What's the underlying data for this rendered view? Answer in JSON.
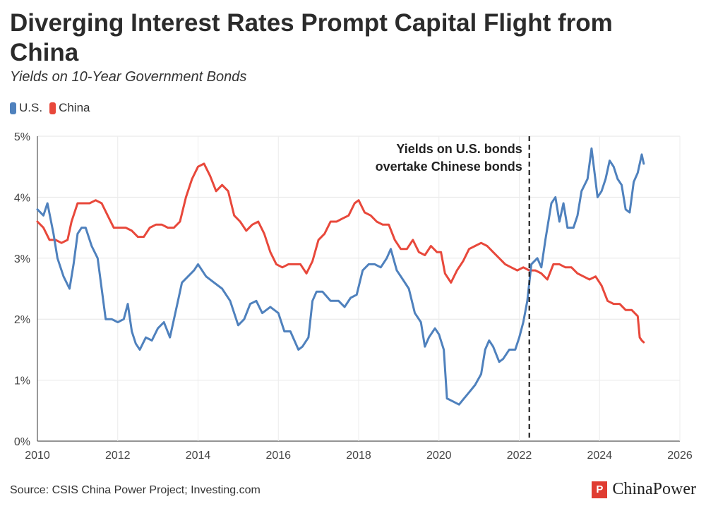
{
  "chart_data": {
    "type": "line",
    "title": "Diverging Interest Rates Prompt Capital Flight from China",
    "subtitle": "Yields on 10-Year Government Bonds",
    "xlabel": "",
    "ylabel": "",
    "xlim": [
      2010,
      2026
    ],
    "ylim": [
      0,
      5
    ],
    "xticks": [
      "2010",
      "2012",
      "2014",
      "2016",
      "2018",
      "2020",
      "2022",
      "2024",
      "2026"
    ],
    "yticks": [
      "0%",
      "1%",
      "2%",
      "3%",
      "4%",
      "5%"
    ],
    "grid": true,
    "legend_position": "top-left",
    "series": [
      {
        "name": "U.S.",
        "color": "#4f81bd",
        "points": [
          [
            2010.0,
            3.8
          ],
          [
            2010.15,
            3.7
          ],
          [
            2010.25,
            3.9
          ],
          [
            2010.4,
            3.4
          ],
          [
            2010.5,
            3.0
          ],
          [
            2010.65,
            2.7
          ],
          [
            2010.8,
            2.5
          ],
          [
            2010.9,
            2.9
          ],
          [
            2011.0,
            3.4
          ],
          [
            2011.1,
            3.5
          ],
          [
            2011.2,
            3.5
          ],
          [
            2011.35,
            3.2
          ],
          [
            2011.5,
            3.0
          ],
          [
            2011.6,
            2.5
          ],
          [
            2011.7,
            2.0
          ],
          [
            2011.85,
            2.0
          ],
          [
            2012.0,
            1.95
          ],
          [
            2012.15,
            2.0
          ],
          [
            2012.25,
            2.25
          ],
          [
            2012.35,
            1.8
          ],
          [
            2012.45,
            1.6
          ],
          [
            2012.55,
            1.5
          ],
          [
            2012.7,
            1.7
          ],
          [
            2012.85,
            1.65
          ],
          [
            2013.0,
            1.85
          ],
          [
            2013.15,
            1.95
          ],
          [
            2013.3,
            1.7
          ],
          [
            2013.4,
            2.0
          ],
          [
            2013.5,
            2.3
          ],
          [
            2013.6,
            2.6
          ],
          [
            2013.75,
            2.7
          ],
          [
            2013.9,
            2.8
          ],
          [
            2014.0,
            2.9
          ],
          [
            2014.2,
            2.7
          ],
          [
            2014.4,
            2.6
          ],
          [
            2014.6,
            2.5
          ],
          [
            2014.8,
            2.3
          ],
          [
            2015.0,
            1.9
          ],
          [
            2015.15,
            2.0
          ],
          [
            2015.3,
            2.25
          ],
          [
            2015.45,
            2.3
          ],
          [
            2015.6,
            2.1
          ],
          [
            2015.8,
            2.2
          ],
          [
            2016.0,
            2.1
          ],
          [
            2016.15,
            1.8
          ],
          [
            2016.3,
            1.8
          ],
          [
            2016.5,
            1.5
          ],
          [
            2016.6,
            1.55
          ],
          [
            2016.75,
            1.7
          ],
          [
            2016.85,
            2.3
          ],
          [
            2016.95,
            2.45
          ],
          [
            2017.1,
            2.45
          ],
          [
            2017.3,
            2.3
          ],
          [
            2017.5,
            2.3
          ],
          [
            2017.65,
            2.2
          ],
          [
            2017.8,
            2.35
          ],
          [
            2017.95,
            2.4
          ],
          [
            2018.1,
            2.8
          ],
          [
            2018.25,
            2.9
          ],
          [
            2018.4,
            2.9
          ],
          [
            2018.55,
            2.85
          ],
          [
            2018.7,
            3.0
          ],
          [
            2018.8,
            3.15
          ],
          [
            2018.95,
            2.8
          ],
          [
            2019.1,
            2.65
          ],
          [
            2019.25,
            2.5
          ],
          [
            2019.4,
            2.1
          ],
          [
            2019.55,
            1.95
          ],
          [
            2019.65,
            1.55
          ],
          [
            2019.75,
            1.7
          ],
          [
            2019.9,
            1.85
          ],
          [
            2020.0,
            1.75
          ],
          [
            2020.12,
            1.5
          ],
          [
            2020.2,
            0.7
          ],
          [
            2020.35,
            0.65
          ],
          [
            2020.5,
            0.6
          ],
          [
            2020.6,
            0.68
          ],
          [
            2020.75,
            0.8
          ],
          [
            2020.9,
            0.92
          ],
          [
            2021.05,
            1.1
          ],
          [
            2021.15,
            1.5
          ],
          [
            2021.25,
            1.65
          ],
          [
            2021.35,
            1.55
          ],
          [
            2021.5,
            1.3
          ],
          [
            2021.6,
            1.35
          ],
          [
            2021.75,
            1.5
          ],
          [
            2021.9,
            1.5
          ],
          [
            2022.0,
            1.7
          ],
          [
            2022.1,
            1.95
          ],
          [
            2022.2,
            2.3
          ],
          [
            2022.3,
            2.9
          ],
          [
            2022.45,
            3.0
          ],
          [
            2022.55,
            2.85
          ],
          [
            2022.65,
            3.3
          ],
          [
            2022.8,
            3.9
          ],
          [
            2022.9,
            4.0
          ],
          [
            2023.0,
            3.6
          ],
          [
            2023.1,
            3.9
          ],
          [
            2023.2,
            3.5
          ],
          [
            2023.35,
            3.5
          ],
          [
            2023.45,
            3.7
          ],
          [
            2023.55,
            4.1
          ],
          [
            2023.7,
            4.3
          ],
          [
            2023.8,
            4.8
          ],
          [
            2023.95,
            4.0
          ],
          [
            2024.05,
            4.1
          ],
          [
            2024.15,
            4.3
          ],
          [
            2024.25,
            4.6
          ],
          [
            2024.35,
            4.5
          ],
          [
            2024.45,
            4.3
          ],
          [
            2024.55,
            4.2
          ],
          [
            2024.65,
            3.8
          ],
          [
            2024.75,
            3.75
          ],
          [
            2024.85,
            4.25
          ],
          [
            2024.95,
            4.4
          ],
          [
            2025.05,
            4.7
          ],
          [
            2025.1,
            4.55
          ]
        ]
      },
      {
        "name": "China",
        "color": "#e8483b",
        "points": [
          [
            2010.0,
            3.6
          ],
          [
            2010.15,
            3.5
          ],
          [
            2010.3,
            3.3
          ],
          [
            2010.45,
            3.3
          ],
          [
            2010.6,
            3.25
          ],
          [
            2010.75,
            3.3
          ],
          [
            2010.85,
            3.6
          ],
          [
            2011.0,
            3.9
          ],
          [
            2011.15,
            3.9
          ],
          [
            2011.3,
            3.9
          ],
          [
            2011.45,
            3.95
          ],
          [
            2011.6,
            3.9
          ],
          [
            2011.75,
            3.7
          ],
          [
            2011.9,
            3.5
          ],
          [
            2012.05,
            3.5
          ],
          [
            2012.2,
            3.5
          ],
          [
            2012.35,
            3.45
          ],
          [
            2012.5,
            3.35
          ],
          [
            2012.65,
            3.35
          ],
          [
            2012.8,
            3.5
          ],
          [
            2012.95,
            3.55
          ],
          [
            2013.1,
            3.55
          ],
          [
            2013.25,
            3.5
          ],
          [
            2013.4,
            3.5
          ],
          [
            2013.55,
            3.6
          ],
          [
            2013.7,
            4.0
          ],
          [
            2013.85,
            4.3
          ],
          [
            2014.0,
            4.5
          ],
          [
            2014.15,
            4.55
          ],
          [
            2014.3,
            4.35
          ],
          [
            2014.45,
            4.1
          ],
          [
            2014.6,
            4.2
          ],
          [
            2014.75,
            4.1
          ],
          [
            2014.9,
            3.7
          ],
          [
            2015.05,
            3.6
          ],
          [
            2015.2,
            3.45
          ],
          [
            2015.35,
            3.55
          ],
          [
            2015.5,
            3.6
          ],
          [
            2015.65,
            3.4
          ],
          [
            2015.8,
            3.1
          ],
          [
            2015.95,
            2.9
          ],
          [
            2016.1,
            2.85
          ],
          [
            2016.25,
            2.9
          ],
          [
            2016.4,
            2.9
          ],
          [
            2016.55,
            2.9
          ],
          [
            2016.7,
            2.75
          ],
          [
            2016.85,
            2.95
          ],
          [
            2017.0,
            3.3
          ],
          [
            2017.15,
            3.4
          ],
          [
            2017.3,
            3.6
          ],
          [
            2017.45,
            3.6
          ],
          [
            2017.6,
            3.65
          ],
          [
            2017.75,
            3.7
          ],
          [
            2017.9,
            3.9
          ],
          [
            2018.0,
            3.95
          ],
          [
            2018.15,
            3.75
          ],
          [
            2018.3,
            3.7
          ],
          [
            2018.45,
            3.6
          ],
          [
            2018.6,
            3.55
          ],
          [
            2018.75,
            3.55
          ],
          [
            2018.9,
            3.3
          ],
          [
            2019.05,
            3.15
          ],
          [
            2019.2,
            3.15
          ],
          [
            2019.35,
            3.3
          ],
          [
            2019.5,
            3.1
          ],
          [
            2019.65,
            3.05
          ],
          [
            2019.8,
            3.2
          ],
          [
            2019.95,
            3.1
          ],
          [
            2020.05,
            3.1
          ],
          [
            2020.15,
            2.75
          ],
          [
            2020.3,
            2.6
          ],
          [
            2020.45,
            2.8
          ],
          [
            2020.6,
            2.95
          ],
          [
            2020.75,
            3.15
          ],
          [
            2020.9,
            3.2
          ],
          [
            2021.05,
            3.25
          ],
          [
            2021.2,
            3.2
          ],
          [
            2021.35,
            3.1
          ],
          [
            2021.5,
            3.0
          ],
          [
            2021.65,
            2.9
          ],
          [
            2021.8,
            2.85
          ],
          [
            2021.95,
            2.8
          ],
          [
            2022.1,
            2.85
          ],
          [
            2022.25,
            2.8
          ],
          [
            2022.4,
            2.8
          ],
          [
            2022.55,
            2.75
          ],
          [
            2022.7,
            2.65
          ],
          [
            2022.85,
            2.9
          ],
          [
            2023.0,
            2.9
          ],
          [
            2023.15,
            2.85
          ],
          [
            2023.3,
            2.85
          ],
          [
            2023.45,
            2.75
          ],
          [
            2023.6,
            2.7
          ],
          [
            2023.75,
            2.65
          ],
          [
            2023.9,
            2.7
          ],
          [
            2024.05,
            2.55
          ],
          [
            2024.2,
            2.3
          ],
          [
            2024.35,
            2.25
          ],
          [
            2024.5,
            2.25
          ],
          [
            2024.65,
            2.15
          ],
          [
            2024.8,
            2.15
          ],
          [
            2024.95,
            2.05
          ],
          [
            2025.0,
            1.7
          ],
          [
            2025.05,
            1.65
          ],
          [
            2025.1,
            1.62
          ]
        ]
      }
    ],
    "annotation": {
      "x": 2022.25,
      "lines": [
        "Yields on U.S. bonds",
        "overtake Chinese bonds"
      ]
    }
  },
  "legend": [
    {
      "label": "U.S.",
      "color": "#4f81bd"
    },
    {
      "label": "China",
      "color": "#e8483b"
    }
  ],
  "footer": {
    "source": "Source: CSIS China Power Project; Investing.com",
    "brand": "ChinaPower"
  }
}
